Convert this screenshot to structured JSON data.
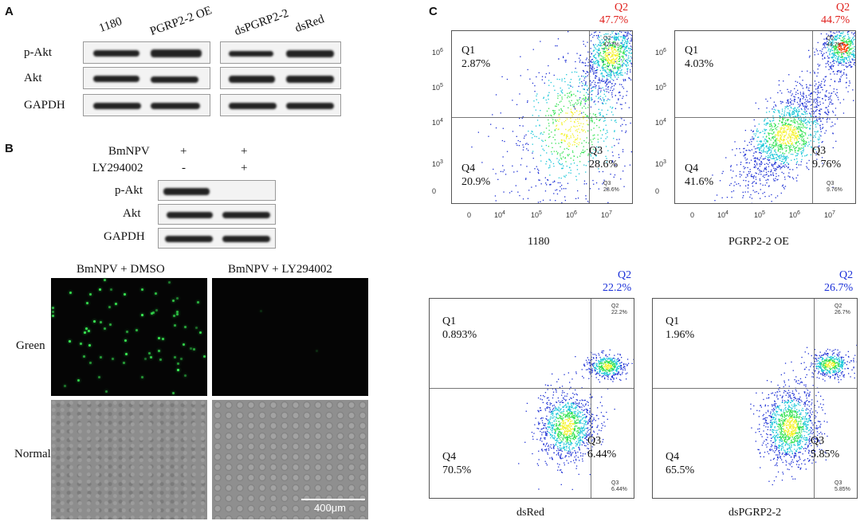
{
  "panel_a": {
    "letter": "A",
    "lanes_left": [
      "1180",
      "PGRP2-2 OE"
    ],
    "lanes_right": [
      "dsPGRP2-2",
      "dsRed"
    ],
    "rows": [
      "p-Akt",
      "Akt",
      "GAPDH"
    ]
  },
  "panel_b": {
    "letter": "B",
    "treatments": [
      {
        "label": "BmNPV",
        "lane1": "+",
        "lane2": "+"
      },
      {
        "label": "LY294002",
        "lane1": "-",
        "lane2": "+"
      }
    ],
    "rows": [
      "p-Akt",
      "Akt",
      "GAPDH"
    ],
    "micro_cols": [
      "BmNPV + DMSO",
      "BmNPV + LY294002"
    ],
    "micro_rows": [
      "Green",
      "Normal"
    ],
    "scale": "400μm"
  },
  "panel_c": {
    "letter": "C",
    "plots": [
      {
        "caption": "1180",
        "q1": "Q1",
        "q1v": "2.87%",
        "q2": "Q2",
        "q2v": "47.7%",
        "q3": "Q3",
        "q3v": "28.6%",
        "q4": "Q4",
        "q4v": "20.9%",
        "q2s": "Q2",
        "q2sv": "47.7%",
        "q3s": "Q3",
        "q3sv": "28.6%",
        "color": "#e0201c"
      },
      {
        "caption": "PGRP2-2 OE",
        "q1": "Q1",
        "q1v": "4.03%",
        "q2": "Q2",
        "q2v": "44.7%",
        "q3": "Q3",
        "q3v": "9.76%",
        "q4": "Q4",
        "q4v": "41.6%",
        "q2s": "Q2",
        "q2sv": "44.7%",
        "q3s": "Q3",
        "q3sv": "9.76%",
        "color": "#e0201c"
      },
      {
        "caption": "dsRed",
        "q1": "Q1",
        "q1v": "0.893%",
        "q2": "Q2",
        "q2v": "22.2%",
        "q3": "Q3",
        "q3v": "6.44%",
        "q4": "Q4",
        "q4v": "70.5%",
        "q2s": "Q2",
        "q2sv": "22.2%",
        "q3s": "Q3",
        "q3sv": "6.44%",
        "color": "#1a2fd8"
      },
      {
        "caption": "dsPGRP2-2",
        "q1": "Q1",
        "q1v": "1.96%",
        "q2": "Q2",
        "q2v": "26.7%",
        "q3": "Q3",
        "q3v": "5.85%",
        "q4": "Q4",
        "q4v": "65.5%",
        "q2s": "Q2",
        "q2sv": "26.7%",
        "q3s": "Q3",
        "q3sv": "5.85%",
        "color": "#1a2fd8"
      }
    ],
    "top_ticks_y": [
      "10",
      "10",
      "10",
      "10",
      "0"
    ],
    "top_ticks_y_exp": [
      "6",
      "5",
      "4",
      "3",
      ""
    ],
    "top_ticks_x": [
      "0",
      "10",
      "10",
      "10",
      "10"
    ],
    "top_ticks_x_exp": [
      "",
      "4",
      "5",
      "6",
      "7"
    ]
  }
}
